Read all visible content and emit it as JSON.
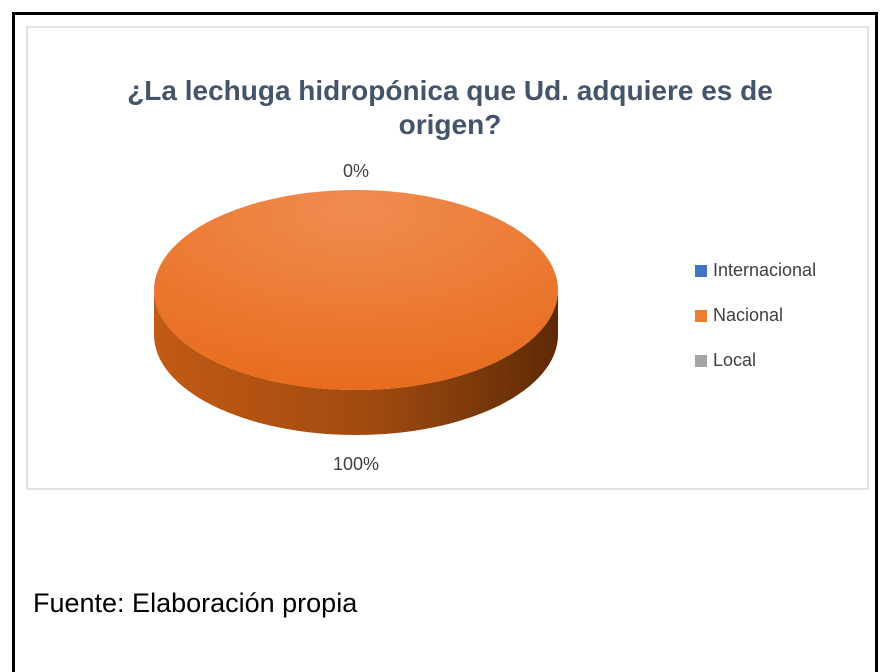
{
  "chart_data": {
    "type": "pie",
    "title": "¿La lechuga hidropónica que Ud. adquiere es de origen?",
    "categories": [
      "Internacional",
      "Nacional",
      "Local"
    ],
    "values": [
      0,
      100,
      0
    ],
    "value_labels": [
      "0%",
      "100%",
      null
    ],
    "colors": [
      "#4472c4",
      "#ed7d31",
      "#a5a5a5"
    ],
    "legend": "right",
    "source": "Fuente: Elaboración propia"
  }
}
